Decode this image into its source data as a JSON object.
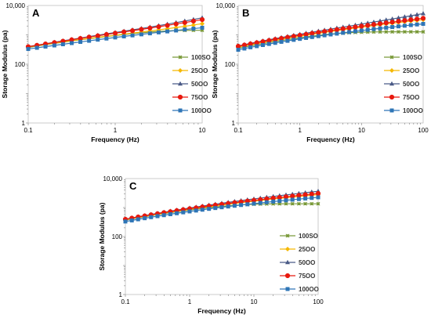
{
  "chart_data": [
    {
      "type": "line",
      "panel_label": "A",
      "xlabel": "Frequency (Hz)",
      "ylabel": "Storage Modulus (pa)",
      "xscale": "log",
      "yscale": "log",
      "xlim": [
        0.1,
        10
      ],
      "ylim": [
        1,
        10000
      ],
      "xticks": [
        0.1,
        1,
        10
      ],
      "xtick_labels": [
        "0.1",
        "1",
        "10"
      ],
      "yticks": [
        1,
        100,
        10000
      ],
      "ytick_labels": [
        "1",
        "100",
        "10,000"
      ],
      "grid": false,
      "legend_position": "right",
      "x": [
        0.1,
        0.126,
        0.158,
        0.2,
        0.251,
        0.316,
        0.398,
        0.501,
        0.631,
        0.794,
        1,
        1.26,
        1.58,
        2,
        2.51,
        3.16,
        3.98,
        5.01,
        6.31,
        7.94,
        10
      ],
      "series": [
        {
          "name": "100SO",
          "color": "#7a9a3a",
          "marker": "x-square",
          "values": [
            372,
            416,
            460,
            512,
            562,
            620,
            678,
            740,
            806,
            874,
            950,
            1020,
            1100,
            1170,
            1240,
            1300,
            1360,
            1400,
            1420,
            1430,
            1430
          ]
        },
        {
          "name": "25OO",
          "color": "#f5b800",
          "marker": "diamond",
          "values": [
            390,
            430,
            475,
            525,
            578,
            635,
            695,
            758,
            825,
            898,
            975,
            1060,
            1150,
            1250,
            1360,
            1480,
            1620,
            1780,
            1960,
            2160,
            2400
          ]
        },
        {
          "name": "50OO",
          "color": "#4a5a86",
          "marker": "triangle",
          "values": [
            400,
            447,
            500,
            560,
            625,
            700,
            780,
            870,
            970,
            1080,
            1200,
            1330,
            1480,
            1650,
            1840,
            2060,
            2320,
            2620,
            2960,
            3340,
            3800
          ]
        },
        {
          "name": "75OO",
          "color": "#e8190e",
          "marker": "circle",
          "values": [
            395,
            440,
            490,
            548,
            610,
            680,
            756,
            840,
            930,
            1030,
            1140,
            1260,
            1390,
            1540,
            1700,
            1890,
            2100,
            2350,
            2620,
            2940,
            3300
          ]
        },
        {
          "name": "100OO",
          "color": "#2e75b6",
          "marker": "square",
          "values": [
            330,
            362,
            398,
            436,
            478,
            524,
            574,
            628,
            686,
            748,
            815,
            885,
            960,
            1040,
            1125,
            1215,
            1310,
            1410,
            1520,
            1630,
            1750
          ]
        }
      ]
    },
    {
      "type": "line",
      "panel_label": "B",
      "xlabel": "Frequency (Hz)",
      "ylabel": "Storage Modulus (pa)",
      "xscale": "log",
      "yscale": "log",
      "xlim": [
        0.1,
        100
      ],
      "ylim": [
        1,
        10000
      ],
      "xticks": [
        0.1,
        1,
        10,
        100
      ],
      "xtick_labels": [
        "0.1",
        "1",
        "10",
        "100"
      ],
      "yticks": [
        1,
        100,
        10000
      ],
      "ytick_labels": [
        "1",
        "100",
        "10,000"
      ],
      "grid": false,
      "legend_position": "right",
      "x": [
        0.1,
        0.126,
        0.158,
        0.2,
        0.251,
        0.316,
        0.398,
        0.501,
        0.631,
        0.794,
        1,
        1.26,
        1.58,
        2,
        2.51,
        3.16,
        3.98,
        5.01,
        6.31,
        7.94,
        10,
        12.6,
        15.8,
        20,
        25.1,
        31.6,
        39.8,
        50.1,
        63.1,
        79.4,
        100
      ],
      "series": [
        {
          "name": "100SO",
          "color": "#7a9a3a",
          "marker": "x-square",
          "values": [
            350,
            385,
            420,
            460,
            500,
            545,
            592,
            640,
            690,
            742,
            795,
            850,
            905,
            960,
            1015,
            1065,
            1110,
            1150,
            1185,
            1210,
            1230,
            1245,
            1255,
            1262,
            1266,
            1268,
            1269,
            1270,
            1270,
            1270,
            1270
          ]
        },
        {
          "name": "25OO",
          "color": "#f5b800",
          "marker": "diamond",
          "values": [
            380,
            418,
            458,
            502,
            548,
            598,
            650,
            706,
            765,
            828,
            895,
            965,
            1040,
            1120,
            1205,
            1295,
            1390,
            1490,
            1595,
            1705,
            1820,
            1940,
            2070,
            2200,
            2340,
            2480,
            2630,
            2780,
            2940,
            3100,
            3270
          ]
        },
        {
          "name": "50OO",
          "color": "#4a5a86",
          "marker": "triangle",
          "values": [
            420,
            465,
            514,
            566,
            622,
            682,
            746,
            815,
            888,
            966,
            1050,
            1140,
            1235,
            1340,
            1450,
            1570,
            1700,
            1840,
            1990,
            2150,
            2330,
            2520,
            2730,
            2960,
            3210,
            3480,
            3780,
            4110,
            4470,
            4860,
            5300
          ]
        },
        {
          "name": "75OO",
          "color": "#e8190e",
          "marker": "circle",
          "values": [
            410,
            450,
            493,
            540,
            590,
            643,
            700,
            760,
            824,
            893,
            965,
            1042,
            1124,
            1211,
            1303,
            1400,
            1503,
            1612,
            1727,
            1848,
            1976,
            2110,
            2252,
            2400,
            2556,
            2720,
            2892,
            3072,
            3262,
            3460,
            3668
          ]
        },
        {
          "name": "100OO",
          "color": "#2e75b6",
          "marker": "square",
          "values": [
            310,
            342,
            376,
            412,
            450,
            490,
            533,
            578,
            626,
            676,
            729,
            784,
            842,
            903,
            966,
            1032,
            1101,
            1173,
            1247,
            1324,
            1404,
            1487,
            1573,
            1662,
            1753,
            1848,
            1945,
            2046,
            2150,
            2257,
            2367
          ]
        }
      ]
    },
    {
      "type": "line",
      "panel_label": "C",
      "xlabel": "Frequency (Hz)",
      "ylabel": "Storage Modulus (pa)",
      "xscale": "log",
      "yscale": "log",
      "xlim": [
        0.1,
        100
      ],
      "ylim": [
        1,
        10000
      ],
      "xticks": [
        0.1,
        1,
        10,
        100
      ],
      "xtick_labels": [
        "0.1",
        "1",
        "10",
        "100"
      ],
      "yticks": [
        1,
        100,
        10000
      ],
      "ytick_labels": [
        "1",
        "100",
        "10,000"
      ],
      "grid": false,
      "legend_position": "right",
      "x": [
        0.1,
        0.126,
        0.158,
        0.2,
        0.251,
        0.316,
        0.398,
        0.501,
        0.631,
        0.794,
        1,
        1.26,
        1.58,
        2,
        2.51,
        3.16,
        3.98,
        5.01,
        6.31,
        7.94,
        10,
        12.6,
        15.8,
        20,
        25.1,
        31.6,
        39.8,
        50.1,
        63.1,
        79.4,
        100
      ],
      "series": [
        {
          "name": "100SO",
          "color": "#7a9a3a",
          "marker": "x-square",
          "values": [
            370,
            405,
            442,
            482,
            524,
            568,
            615,
            664,
            715,
            768,
            822,
            878,
            935,
            992,
            1048,
            1102,
            1152,
            1198,
            1238,
            1272,
            1300,
            1320,
            1334,
            1342,
            1346,
            1348,
            1349,
            1350,
            1350,
            1350,
            1350
          ]
        },
        {
          "name": "25OO",
          "color": "#f5b800",
          "marker": "diamond",
          "values": [
            380,
            416,
            454,
            496,
            540,
            586,
            636,
            688,
            744,
            802,
            864,
            928,
            996,
            1066,
            1140,
            1218,
            1298,
            1382,
            1470,
            1560,
            1655,
            1752,
            1854,
            1958,
            2066,
            2178,
            2294,
            2412,
            2534,
            2660,
            2790
          ]
        },
        {
          "name": "50OO",
          "color": "#4a5a86",
          "marker": "triangle",
          "values": [
            400,
            440,
            484,
            530,
            580,
            634,
            692,
            754,
            820,
            890,
            965,
            1044,
            1128,
            1216,
            1310,
            1408,
            1512,
            1622,
            1738,
            1860,
            1988,
            2122,
            2262,
            2410,
            2565,
            2727,
            2896,
            3073,
            3258,
            3450,
            3650
          ]
        },
        {
          "name": "75OO",
          "color": "#e8190e",
          "marker": "circle",
          "values": [
            395,
            433,
            474,
            518,
            565,
            615,
            668,
            724,
            784,
            847,
            913,
            982,
            1055,
            1132,
            1212,
            1296,
            1384,
            1476,
            1572,
            1672,
            1776,
            1884,
            1997,
            2114,
            2235,
            2361,
            2491,
            2626,
            2766,
            2910,
            3060
          ]
        },
        {
          "name": "100OO",
          "color": "#2e75b6",
          "marker": "square",
          "values": [
            330,
            360,
            393,
            428,
            465,
            504,
            546,
            590,
            636,
            684,
            735,
            788,
            843,
            901,
            961,
            1023,
            1088,
            1155,
            1224,
            1296,
            1370,
            1447,
            1526,
            1608,
            1692,
            1779,
            1868,
            1960,
            2055,
            2152,
            2252
          ]
        }
      ]
    }
  ]
}
